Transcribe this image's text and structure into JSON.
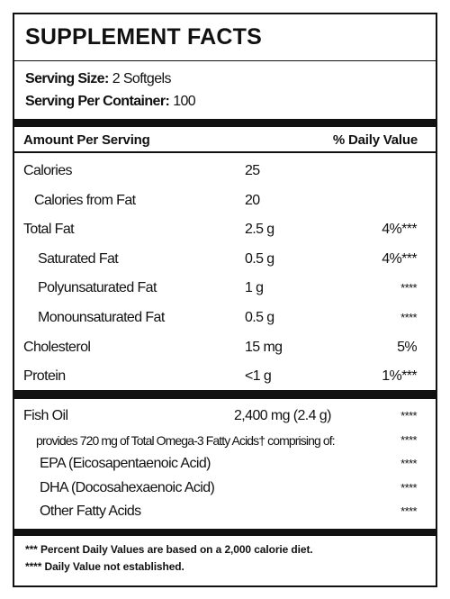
{
  "title": "SUPPLEMENT FACTS",
  "serving": [
    {
      "label": "Serving Size:",
      "value": "2 Softgels"
    },
    {
      "label": "Serving Per Container:",
      "value": "100"
    }
  ],
  "header": {
    "left": "Amount Per Serving",
    "right": "% Daily Value"
  },
  "nutrients": [
    {
      "name": "Calories",
      "amount": "25",
      "indent": 0
    },
    {
      "name": "Calories from Fat",
      "amount": "20",
      "indent": 1
    },
    {
      "name": "Total Fat",
      "amount": "2.5 g",
      "dv": "4%***",
      "indent": 0
    },
    {
      "name": "Saturated Fat",
      "amount": "0.5 g",
      "dv": "4%***",
      "indent": 2
    },
    {
      "name": "Polyunsaturated Fat",
      "amount": "1 g",
      "dv": "****",
      "indent": 2
    },
    {
      "name": "Monounsaturated Fat",
      "amount": "0.5 g",
      "dv": "****",
      "indent": 2
    },
    {
      "name": "Cholesterol",
      "amount": "15 mg",
      "dv": "5%",
      "indent": 0
    },
    {
      "name": "Protein",
      "amount": "<1 g",
      "dv": "1%***",
      "indent": 0
    }
  ],
  "fish_oil": [
    {
      "name": "Fish Oil",
      "amount": "2,400 mg (2.4 g)",
      "dv": "****",
      "indent": 0
    },
    {
      "name": "provides 720 mg of Total Omega-3 Fatty Acids† comprising of:",
      "dv": "****",
      "indent": 1
    },
    {
      "name": "EPA  (Eicosapentaenoic Acid)",
      "dv": "****",
      "indent": 2
    },
    {
      "name": "DHA  (Docosahexaenoic Acid)",
      "dv": "****",
      "indent": 2
    },
    {
      "name": "Other Fatty Acids",
      "dv": "****",
      "indent": 2
    }
  ],
  "footnotes": [
    "*** Percent Daily Values are based on a 2,000 calorie diet.",
    "**** Daily Value not established."
  ]
}
